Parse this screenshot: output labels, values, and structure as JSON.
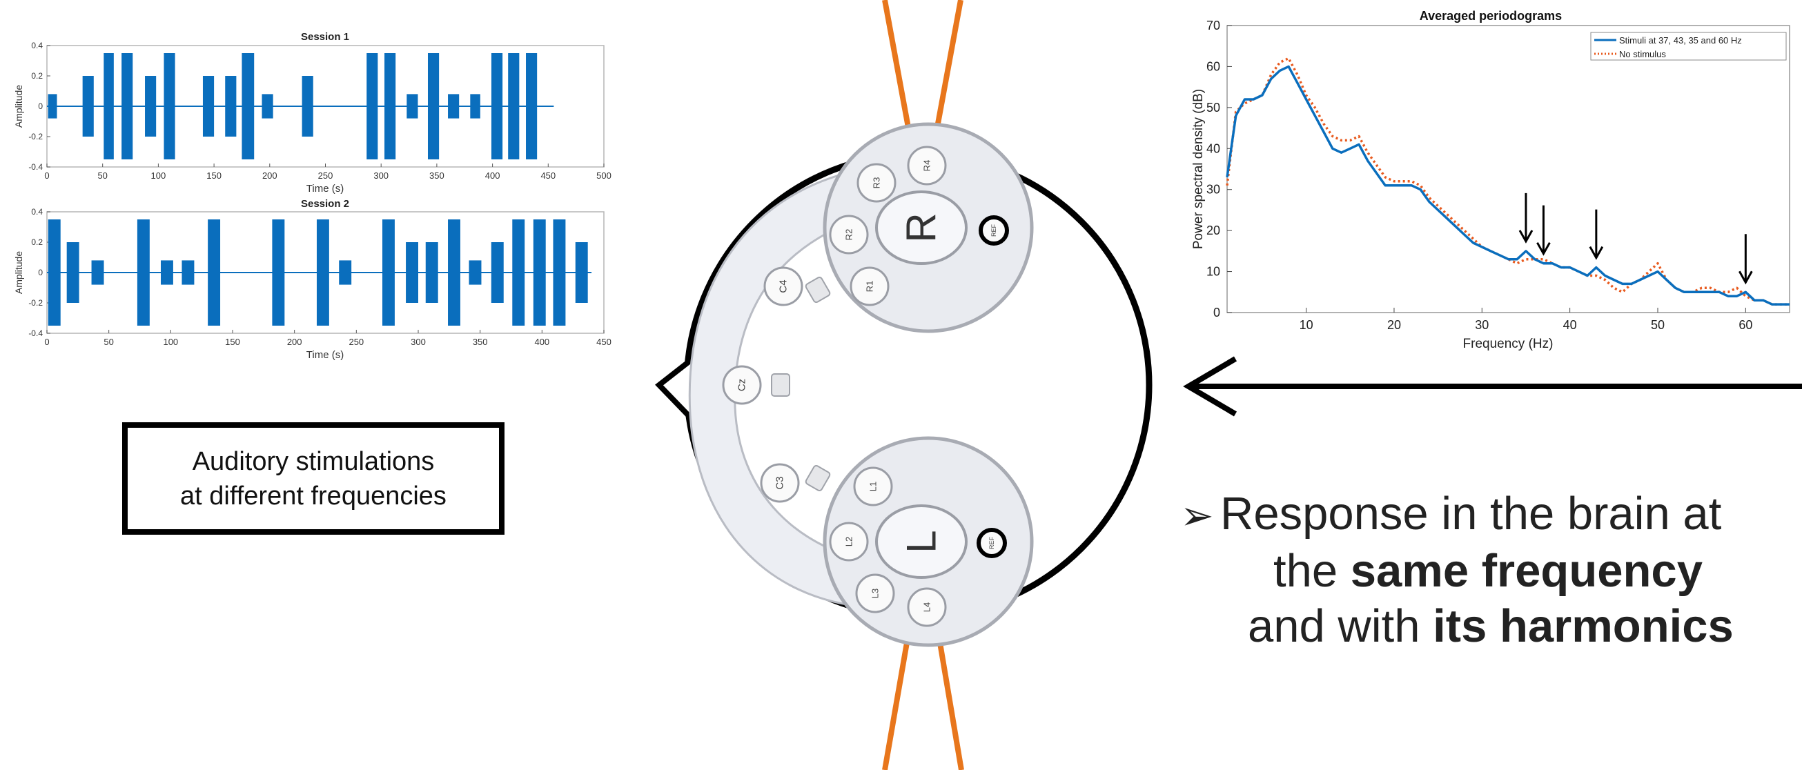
{
  "colors": {
    "signal": "#0a6ebd",
    "stim_line": "#0a6ebd",
    "nostim_line": "#e85a1e",
    "electrode_wire": "#e8761c",
    "head_outline": "#000000"
  },
  "callout": {
    "line1": "Auditory stimulations",
    "line2": "at different frequencies"
  },
  "response": {
    "bullet": "➢",
    "l1": "Response in the brain at",
    "l2a": "the ",
    "l2b": "same frequency",
    "l3a": "and with ",
    "l3b": "its harmonics"
  },
  "headset": {
    "right_label": "R",
    "left_label": "L",
    "electrodes": [
      "R4",
      "R3",
      "R2",
      "R1",
      "C4",
      "Cz",
      "C3",
      "L1",
      "L2",
      "L3",
      "L4",
      "REF",
      "REF"
    ]
  },
  "chart_data": [
    {
      "type": "bar",
      "title": "Session 1",
      "xlabel": "Time (s)",
      "ylabel": "Amplitude",
      "xlim": [
        0,
        500
      ],
      "ylim": [
        -0.4,
        0.4
      ],
      "xticks": [
        0,
        50,
        100,
        150,
        200,
        250,
        300,
        350,
        400,
        450,
        500
      ],
      "yticks": [
        -0.4,
        -0.2,
        0,
        0.2,
        0.4
      ],
      "baseline_end": 455,
      "bursts": [
        {
          "start": 1,
          "end": 9,
          "amp": 0.08
        },
        {
          "start": 32,
          "end": 42,
          "amp": 0.2
        },
        {
          "start": 51,
          "end": 60,
          "amp": 0.35
        },
        {
          "start": 67,
          "end": 77,
          "amp": 0.35
        },
        {
          "start": 88,
          "end": 98,
          "amp": 0.2
        },
        {
          "start": 105,
          "end": 115,
          "amp": 0.35
        },
        {
          "start": 140,
          "end": 150,
          "amp": 0.2
        },
        {
          "start": 160,
          "end": 170,
          "amp": 0.2
        },
        {
          "start": 175,
          "end": 186,
          "amp": 0.35
        },
        {
          "start": 193,
          "end": 203,
          "amp": 0.08
        },
        {
          "start": 229,
          "end": 239,
          "amp": 0.2
        },
        {
          "start": 287,
          "end": 297,
          "amp": 0.35
        },
        {
          "start": 303,
          "end": 313,
          "amp": 0.35
        },
        {
          "start": 323,
          "end": 333,
          "amp": 0.08
        },
        {
          "start": 342,
          "end": 352,
          "amp": 0.35
        },
        {
          "start": 360,
          "end": 370,
          "amp": 0.08
        },
        {
          "start": 380,
          "end": 389,
          "amp": 0.08
        },
        {
          "start": 399,
          "end": 409,
          "amp": 0.35
        },
        {
          "start": 414,
          "end": 424,
          "amp": 0.35
        },
        {
          "start": 430,
          "end": 440,
          "amp": 0.35
        }
      ]
    },
    {
      "type": "bar",
      "title": "Session 2",
      "xlabel": "Time (s)",
      "ylabel": "Amplitude",
      "xlim": [
        0,
        450
      ],
      "ylim": [
        -0.4,
        0.4
      ],
      "xticks": [
        0,
        50,
        100,
        150,
        200,
        250,
        300,
        350,
        400,
        450
      ],
      "yticks": [
        -0.4,
        -0.2,
        0,
        0.2,
        0.4
      ],
      "baseline_end": 440,
      "bursts": [
        {
          "start": 1,
          "end": 11,
          "amp": 0.35
        },
        {
          "start": 16,
          "end": 26,
          "amp": 0.2
        },
        {
          "start": 36,
          "end": 46,
          "amp": 0.08
        },
        {
          "start": 73,
          "end": 83,
          "amp": 0.35
        },
        {
          "start": 92,
          "end": 102,
          "amp": 0.08
        },
        {
          "start": 109,
          "end": 119,
          "amp": 0.08
        },
        {
          "start": 130,
          "end": 140,
          "amp": 0.35
        },
        {
          "start": 182,
          "end": 192,
          "amp": 0.35
        },
        {
          "start": 218,
          "end": 228,
          "amp": 0.35
        },
        {
          "start": 236,
          "end": 246,
          "amp": 0.08
        },
        {
          "start": 271,
          "end": 281,
          "amp": 0.35
        },
        {
          "start": 290,
          "end": 300,
          "amp": 0.2
        },
        {
          "start": 306,
          "end": 316,
          "amp": 0.2
        },
        {
          "start": 324,
          "end": 334,
          "amp": 0.35
        },
        {
          "start": 341,
          "end": 351,
          "amp": 0.08
        },
        {
          "start": 359,
          "end": 369,
          "amp": 0.2
        },
        {
          "start": 376,
          "end": 386,
          "amp": 0.35
        },
        {
          "start": 393,
          "end": 403,
          "amp": 0.35
        },
        {
          "start": 409,
          "end": 419,
          "amp": 0.35
        },
        {
          "start": 427,
          "end": 437,
          "amp": 0.2
        }
      ]
    },
    {
      "type": "line",
      "title": "Averaged periodograms",
      "xlabel": "Frequency (Hz)",
      "ylabel": "Power spectral density (dB)",
      "xlim": [
        1,
        65
      ],
      "ylim": [
        0,
        70
      ],
      "xticks": [
        10,
        20,
        30,
        40,
        50,
        60
      ],
      "yticks": [
        0,
        10,
        20,
        30,
        40,
        50,
        60,
        70
      ],
      "legend_position": "top-right",
      "arrows_at_hz": [
        35,
        37,
        43,
        60
      ],
      "series": [
        {
          "name": "Stimuli at 37, 43, 35 and 60 Hz",
          "style": "solid",
          "x": [
            1,
            2,
            3,
            4,
            5,
            6,
            7,
            8,
            9,
            10,
            11,
            12,
            13,
            14,
            15,
            16,
            17,
            18,
            19,
            20,
            21,
            22,
            23,
            24,
            25,
            26,
            27,
            28,
            29,
            30,
            31,
            32,
            33,
            34,
            35,
            36,
            37,
            38,
            39,
            40,
            41,
            42,
            43,
            44,
            45,
            46,
            47,
            48,
            49,
            50,
            51,
            52,
            53,
            54,
            55,
            56,
            57,
            58,
            59,
            60,
            61,
            62,
            63,
            64,
            65
          ],
          "y": [
            33,
            48,
            52,
            52,
            53,
            57,
            59,
            60,
            56,
            52,
            48,
            44,
            40,
            39,
            40,
            41,
            37,
            34,
            31,
            31,
            31,
            31,
            30,
            27,
            25,
            23,
            21,
            19,
            17,
            16,
            15,
            14,
            13,
            13,
            15,
            13,
            12,
            12,
            11,
            11,
            10,
            9,
            11,
            9,
            8,
            7,
            7,
            8,
            9,
            10,
            8,
            6,
            5,
            5,
            5,
            5,
            5,
            4,
            4,
            5,
            3,
            3,
            2,
            2,
            2
          ]
        },
        {
          "name": "No stimulus",
          "style": "dotted",
          "x": [
            1,
            2,
            3,
            4,
            5,
            6,
            7,
            8,
            9,
            10,
            11,
            12,
            13,
            14,
            15,
            16,
            17,
            18,
            19,
            20,
            21,
            22,
            23,
            24,
            25,
            26,
            27,
            28,
            29,
            30,
            31,
            32,
            33,
            34,
            35,
            36,
            37,
            38,
            39,
            40,
            41,
            42,
            43,
            44,
            45,
            46,
            47,
            48,
            49,
            50,
            51,
            52,
            53,
            54,
            55,
            56,
            57,
            58,
            59,
            60,
            61,
            62,
            63,
            64,
            65
          ],
          "y": [
            31,
            49,
            51,
            52,
            53,
            58,
            61,
            62,
            58,
            53,
            50,
            46,
            43,
            42,
            42,
            43,
            39,
            36,
            33,
            32,
            32,
            32,
            31,
            28,
            26,
            24,
            22,
            20,
            18,
            16,
            15,
            14,
            13,
            12,
            13,
            13,
            13,
            12,
            11,
            11,
            10,
            9,
            9,
            8,
            6,
            5,
            7,
            8,
            10,
            12,
            8,
            6,
            5,
            5,
            6,
            6,
            5,
            5,
            6,
            4,
            3,
            3,
            2,
            2,
            2
          ]
        }
      ]
    }
  ]
}
